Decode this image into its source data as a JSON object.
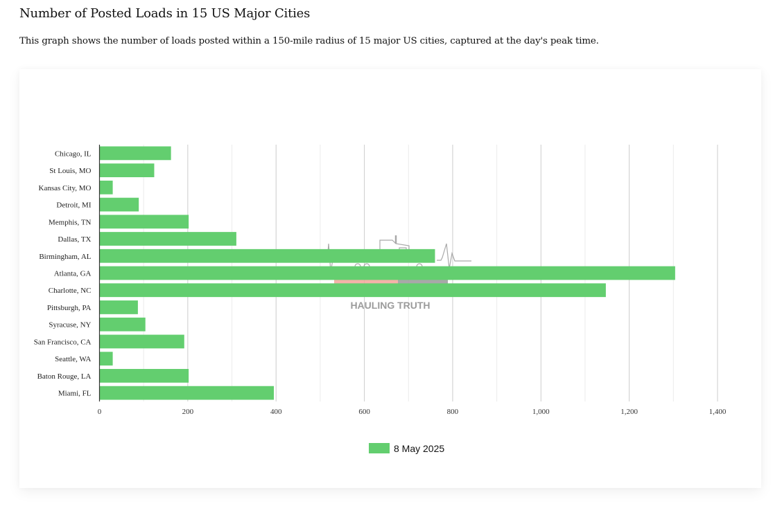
{
  "page": {
    "title": "Number of Posted Loads in 15 US Major Cities",
    "subtitle": "This graph shows the number of loads posted within a 150-mile radius of 15 major US cities, captured at the day's peak time."
  },
  "watermark": {
    "text": "HAULING TRUTH",
    "icon": "truck-heartbeat-logo-icon"
  },
  "chart_data": {
    "type": "bar",
    "orientation": "horizontal",
    "title": "",
    "xlabel": "",
    "ylabel": "",
    "categories": [
      "Chicago, IL",
      "St Louis, MO",
      "Kansas City, MO",
      "Detroit, MI",
      "Memphis, TN",
      "Dallas, TX",
      "Birmingham, AL",
      "Atlanta, GA",
      "Charlotte, NC",
      "Pittsburgh, PA",
      "Syracuse, NY",
      "San Francisco, CA",
      "Seattle, WA",
      "Baton Rouge, LA",
      "Miami, FL"
    ],
    "series": [
      {
        "name": "8 May 2025",
        "color": "#63ce6f",
        "values": [
          162,
          124,
          30,
          89,
          202,
          310,
          760,
          1304,
          1147,
          87,
          104,
          192,
          30,
          202,
          395
        ]
      }
    ],
    "xlim": [
      0,
      1400
    ],
    "x_ticks": [
      0,
      200,
      400,
      600,
      800,
      1000,
      1200,
      1400
    ],
    "x_tick_labels": [
      "0",
      "200",
      "400",
      "600",
      "800",
      "1,000",
      "1,200",
      "1,400"
    ],
    "minor_grid_step": 100,
    "grid": true,
    "legend": {
      "position": "bottom",
      "entries": [
        "8 May 2025"
      ]
    }
  }
}
